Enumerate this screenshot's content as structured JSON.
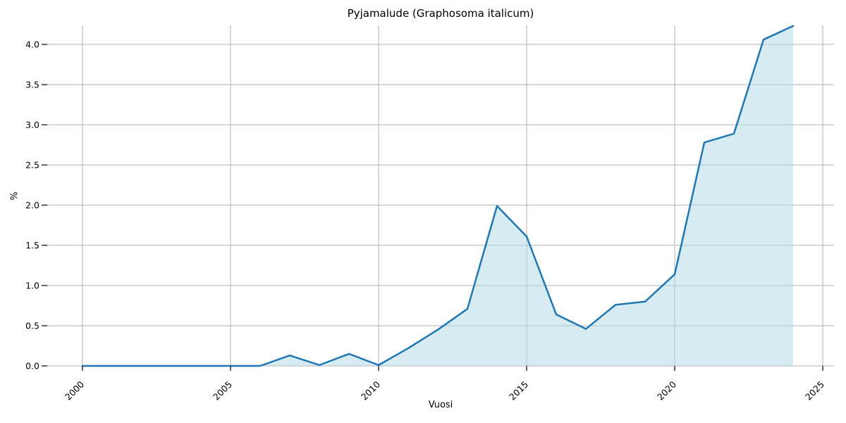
{
  "chart_data": {
    "type": "area",
    "title": "Pyjamalude (Graphosoma italicum)",
    "xlabel": "Vuosi",
    "ylabel": "%",
    "x": [
      2000,
      2001,
      2002,
      2003,
      2004,
      2005,
      2006,
      2007,
      2008,
      2009,
      2010,
      2011,
      2012,
      2013,
      2014,
      2015,
      2016,
      2017,
      2018,
      2019,
      2020,
      2021,
      2022,
      2023,
      2024
    ],
    "y": [
      0.0,
      0.0,
      0.0,
      0.0,
      0.0,
      0.0,
      0.0,
      0.13,
      0.01,
      0.15,
      0.01,
      0.22,
      0.45,
      0.71,
      1.99,
      1.61,
      0.64,
      0.46,
      0.76,
      0.8,
      1.14,
      2.78,
      2.89,
      4.06,
      4.23
    ],
    "xlim": [
      1998.81,
      2025.38
    ],
    "ylim": [
      0,
      4.237
    ],
    "xticks": [
      2000,
      2005,
      2010,
      2015,
      2020,
      2025
    ],
    "xtick_labels": [
      "2000",
      "2005",
      "2010",
      "2015",
      "2020",
      "2025"
    ],
    "yticks": [
      0.0,
      0.5,
      1.0,
      1.5,
      2.0,
      2.5,
      3.0,
      3.5,
      4.0
    ],
    "ytick_labels": [
      "0.0",
      "0.5",
      "1.0",
      "1.5",
      "2.0",
      "2.5",
      "3.0",
      "3.5",
      "4.0"
    ],
    "xtick_rotation": 45,
    "grid": true,
    "legend": false,
    "colors": {
      "line": "#1f77b4",
      "fill": "#add8e6",
      "fill_opacity": 0.5,
      "grid": "#b0b0b0",
      "tick": "#000000",
      "text": "#000000",
      "background": "#ffffff"
    }
  }
}
